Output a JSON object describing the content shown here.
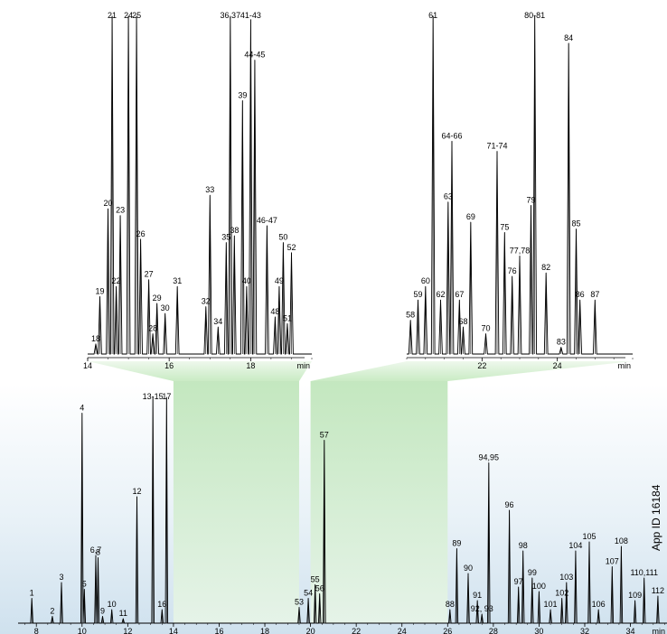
{
  "chart_data": [
    {
      "type": "line",
      "panel": "overview",
      "x_unit": "min",
      "xlim": [
        7.2,
        35.6
      ],
      "x_ticks": [
        8,
        10,
        12,
        14,
        16,
        18,
        20,
        22,
        24,
        26,
        28,
        30,
        32,
        34
      ],
      "side_label": "App ID 16184",
      "peaks": [
        {
          "label": "1",
          "x": 7.8,
          "h": 0.11
        },
        {
          "label": "2",
          "x": 8.7,
          "h": 0.03
        },
        {
          "label": "3",
          "x": 9.1,
          "h": 0.18
        },
        {
          "label": "4",
          "x": 10.0,
          "h": 0.93
        },
        {
          "label": "5",
          "x": 10.1,
          "h": 0.15
        },
        {
          "label": "6,7",
          "x": 10.6,
          "h": 0.3
        },
        {
          "label": "8",
          "x": 10.7,
          "h": 0.29
        },
        {
          "label": "9",
          "x": 10.9,
          "h": 0.03
        },
        {
          "label": "10",
          "x": 11.3,
          "h": 0.06
        },
        {
          "label": "11",
          "x": 11.8,
          "h": 0.02
        },
        {
          "label": "12",
          "x": 12.4,
          "h": 0.56
        },
        {
          "label": "13-15",
          "x": 13.1,
          "h": 1.0
        },
        {
          "label": "16",
          "x": 13.5,
          "h": 0.06
        },
        {
          "label": "17",
          "x": 13.7,
          "h": 1.0
        },
        {
          "label": "53",
          "x": 19.5,
          "h": 0.07
        },
        {
          "label": "54",
          "x": 19.9,
          "h": 0.11
        },
        {
          "label": "55",
          "x": 20.2,
          "h": 0.17
        },
        {
          "label": "56",
          "x": 20.4,
          "h": 0.13
        },
        {
          "label": "57",
          "x": 20.6,
          "h": 0.81
        },
        {
          "label": "88",
          "x": 26.1,
          "h": 0.06
        },
        {
          "label": "89",
          "x": 26.4,
          "h": 0.33
        },
        {
          "label": "90",
          "x": 26.9,
          "h": 0.22
        },
        {
          "label": "91",
          "x": 27.3,
          "h": 0.1
        },
        {
          "label": "92, 93",
          "x": 27.5,
          "h": 0.04
        },
        {
          "label": "94,95",
          "x": 27.8,
          "h": 0.71
        },
        {
          "label": "96",
          "x": 28.7,
          "h": 0.5
        },
        {
          "label": "97",
          "x": 29.1,
          "h": 0.16
        },
        {
          "label": "98",
          "x": 29.3,
          "h": 0.32
        },
        {
          "label": "99",
          "x": 29.7,
          "h": 0.2
        },
        {
          "label": "100",
          "x": 30.0,
          "h": 0.14
        },
        {
          "label": "101",
          "x": 30.5,
          "h": 0.06
        },
        {
          "label": "102",
          "x": 31.0,
          "h": 0.11
        },
        {
          "label": "103",
          "x": 31.2,
          "h": 0.18
        },
        {
          "label": "104",
          "x": 31.6,
          "h": 0.32
        },
        {
          "label": "105",
          "x": 32.2,
          "h": 0.36
        },
        {
          "label": "106",
          "x": 32.6,
          "h": 0.06
        },
        {
          "label": "107",
          "x": 33.2,
          "h": 0.25
        },
        {
          "label": "108",
          "x": 33.6,
          "h": 0.34
        },
        {
          "label": "109",
          "x": 34.2,
          "h": 0.1
        },
        {
          "label": "110,111",
          "x": 34.6,
          "h": 0.2
        },
        {
          "label": "112",
          "x": 35.2,
          "h": 0.12
        }
      ]
    },
    {
      "type": "line",
      "panel": "zoom-14-19",
      "x_unit": "min",
      "xlim": [
        14.0,
        19.5
      ],
      "x_ticks": [
        14,
        16,
        18
      ],
      "peaks": [
        {
          "label": "18",
          "x": 14.2,
          "h": 0.03
        },
        {
          "label": "19",
          "x": 14.3,
          "h": 0.17
        },
        {
          "label": "20",
          "x": 14.5,
          "h": 0.43
        },
        {
          "label": "21",
          "x": 14.6,
          "h": 1.0
        },
        {
          "label": "22",
          "x": 14.7,
          "h": 0.2
        },
        {
          "label": "23",
          "x": 14.8,
          "h": 0.41
        },
        {
          "label": "24",
          "x": 15.0,
          "h": 1.0
        },
        {
          "label": "25",
          "x": 15.2,
          "h": 1.0
        },
        {
          "label": "26",
          "x": 15.3,
          "h": 0.34
        },
        {
          "label": "27",
          "x": 15.5,
          "h": 0.22
        },
        {
          "label": "28",
          "x": 15.6,
          "h": 0.06
        },
        {
          "label": "29",
          "x": 15.7,
          "h": 0.15
        },
        {
          "label": "30",
          "x": 15.9,
          "h": 0.12
        },
        {
          "label": "31",
          "x": 16.2,
          "h": 0.2
        },
        {
          "label": "32",
          "x": 16.9,
          "h": 0.14
        },
        {
          "label": "33",
          "x": 17.0,
          "h": 0.47
        },
        {
          "label": "34",
          "x": 17.2,
          "h": 0.08
        },
        {
          "label": "35",
          "x": 17.4,
          "h": 0.33
        },
        {
          "label": "36,37",
          "x": 17.5,
          "h": 1.0
        },
        {
          "label": "38",
          "x": 17.6,
          "h": 0.35
        },
        {
          "label": "39",
          "x": 17.8,
          "h": 0.75
        },
        {
          "label": "40",
          "x": 17.9,
          "h": 0.2
        },
        {
          "label": "41-43",
          "x": 18.0,
          "h": 0.99
        },
        {
          "label": "44-45",
          "x": 18.1,
          "h": 0.87
        },
        {
          "label": "46-47",
          "x": 18.4,
          "h": 0.38
        },
        {
          "label": "48",
          "x": 18.6,
          "h": 0.11
        },
        {
          "label": "49",
          "x": 18.7,
          "h": 0.2
        },
        {
          "label": "50",
          "x": 18.8,
          "h": 0.33
        },
        {
          "label": "51",
          "x": 18.9,
          "h": 0.09
        },
        {
          "label": "52",
          "x": 19.0,
          "h": 0.3
        }
      ]
    },
    {
      "type": "line",
      "panel": "zoom-20-26",
      "x_unit": "min",
      "xlim": [
        20.0,
        26.0
      ],
      "x_ticks": [
        22,
        24
      ],
      "peaks": [
        {
          "label": "58",
          "x": 20.1,
          "h": 0.1
        },
        {
          "label": "59",
          "x": 20.3,
          "h": 0.16
        },
        {
          "label": "60",
          "x": 20.5,
          "h": 0.2
        },
        {
          "label": "61",
          "x": 20.7,
          "h": 1.0
        },
        {
          "label": "62",
          "x": 20.9,
          "h": 0.16
        },
        {
          "label": "63",
          "x": 21.1,
          "h": 0.45
        },
        {
          "label": "64-66",
          "x": 21.2,
          "h": 0.63
        },
        {
          "label": "67",
          "x": 21.4,
          "h": 0.16
        },
        {
          "label": "68",
          "x": 21.5,
          "h": 0.08
        },
        {
          "label": "69",
          "x": 21.7,
          "h": 0.39
        },
        {
          "label": "70",
          "x": 22.1,
          "h": 0.06
        },
        {
          "label": "71-74",
          "x": 22.4,
          "h": 0.6
        },
        {
          "label": "75",
          "x": 22.6,
          "h": 0.36
        },
        {
          "label": "76",
          "x": 22.8,
          "h": 0.23
        },
        {
          "label": "77,78",
          "x": 23.0,
          "h": 0.29
        },
        {
          "label": "79",
          "x": 23.3,
          "h": 0.44
        },
        {
          "label": "80-81",
          "x": 23.4,
          "h": 1.0
        },
        {
          "label": "82",
          "x": 23.7,
          "h": 0.24
        },
        {
          "label": "83",
          "x": 24.1,
          "h": 0.02
        },
        {
          "label": "84",
          "x": 24.3,
          "h": 0.92
        },
        {
          "label": "85",
          "x": 24.5,
          "h": 0.37
        },
        {
          "label": "86",
          "x": 24.6,
          "h": 0.16
        },
        {
          "label": "87",
          "x": 25.0,
          "h": 0.16
        }
      ]
    }
  ]
}
